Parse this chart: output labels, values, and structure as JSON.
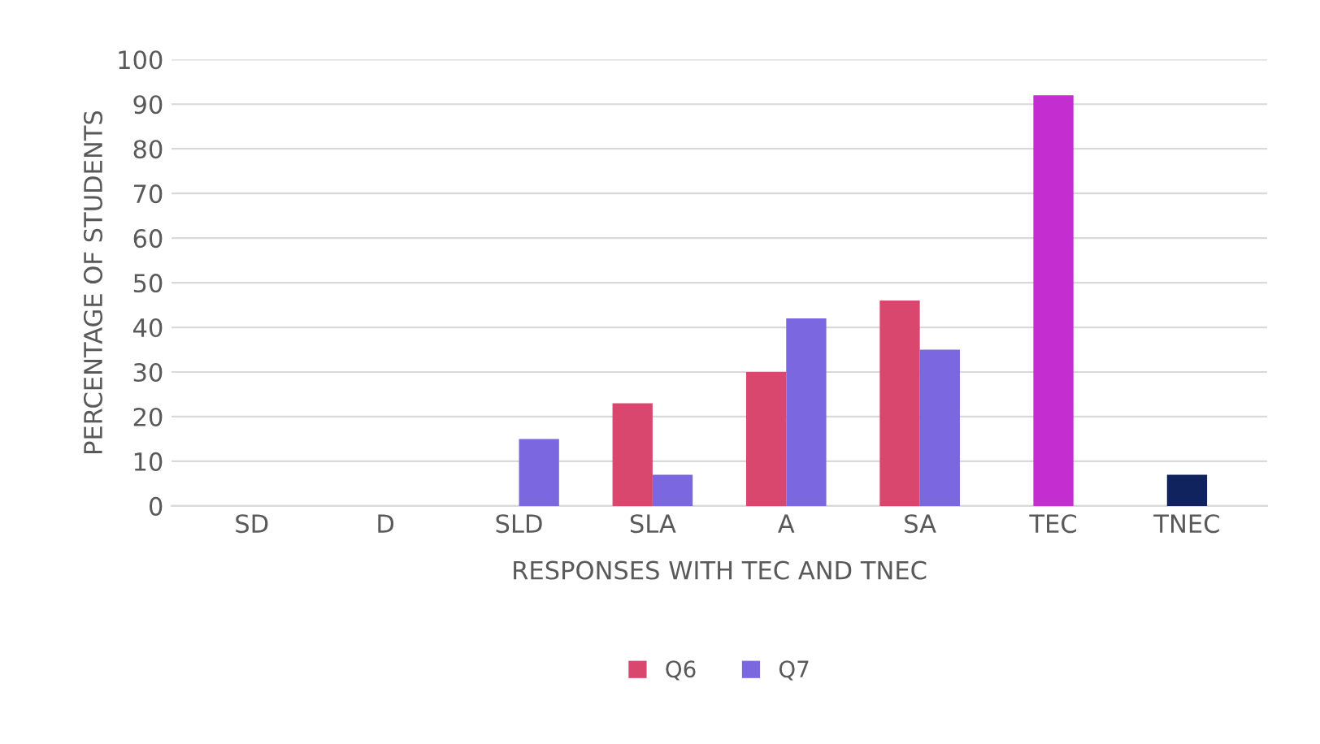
{
  "chart_data": {
    "type": "bar",
    "xlabel": "RESPONSES WITH TEC AND TNEC",
    "ylabel": "PERCENTAGE OF STUDENTS",
    "categories": [
      "SD",
      "D",
      "SLD",
      "SLA",
      "A",
      "SA",
      "TEC",
      "TNEC"
    ],
    "series": [
      {
        "name": "Q6",
        "color": "#d9466e",
        "values": [
          0,
          0,
          0,
          23,
          30,
          46,
          null,
          null
        ]
      },
      {
        "name": "Q7",
        "color": "#7b68e0",
        "values": [
          0,
          0,
          15,
          7,
          42,
          35,
          null,
          null
        ]
      },
      {
        "colors": [
          null,
          null,
          null,
          null,
          null,
          null,
          "#c42ed0",
          "#10235e"
        ],
        "values": [
          null,
          null,
          null,
          null,
          null,
          null,
          92,
          7
        ]
      }
    ],
    "ylim": [
      0,
      100
    ],
    "yticks": [
      0,
      10,
      20,
      30,
      40,
      50,
      60,
      70,
      80,
      90,
      100
    ],
    "grid": "y",
    "legend": "bottom"
  }
}
